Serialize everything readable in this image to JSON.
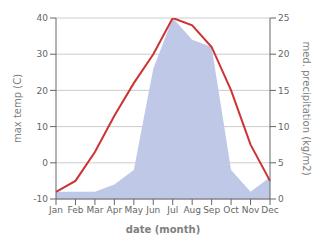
{
  "chart_data": {
    "type": "line",
    "categories": [
      "Jan",
      "Feb",
      "Mar",
      "Apr",
      "May",
      "Jun",
      "Jul",
      "Aug",
      "Sep",
      "Oct",
      "Nov",
      "Dec"
    ],
    "series": [
      {
        "type": "area",
        "axis": "y2",
        "color": "#c0c8e8",
        "values": [
          1,
          1,
          1,
          2,
          4,
          18,
          25,
          22,
          21,
          4,
          1,
          3
        ]
      },
      {
        "type": "line",
        "color": "#cc3333",
        "values": [
          -8,
          -5,
          3,
          13,
          22,
          30,
          40,
          38,
          32,
          20,
          5,
          -5
        ]
      }
    ],
    "xlabel": "date (month)",
    "ylabel": "max temp (C)",
    "y2label": "med. precipitation (kg/m2)",
    "ylim": [
      -10,
      40
    ],
    "yticks": [
      -10,
      0,
      10,
      20,
      30,
      40
    ],
    "y2lim": [
      0,
      25
    ],
    "y2ticks": [
      0,
      5,
      10,
      15,
      20,
      25
    ],
    "grid": true
  }
}
